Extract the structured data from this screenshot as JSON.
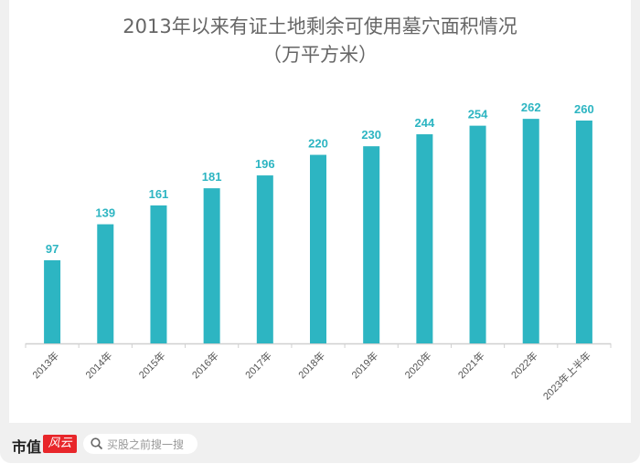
{
  "chart_data": {
    "type": "bar",
    "title": "2013年以来有证土地剩余可使用墓穴面积情况",
    "subtitle": "（万平方米）",
    "categories": [
      "2013年",
      "2014年",
      "2015年",
      "2016年",
      "2017年",
      "2018年",
      "2019年",
      "2020年",
      "2021年",
      "2022年",
      "2023年上半年"
    ],
    "values": [
      97,
      139,
      161,
      181,
      196,
      220,
      230,
      244,
      254,
      262,
      260
    ],
    "ylim": [
      0,
      280
    ],
    "grid": false,
    "bar_color": "#2db5c2",
    "label_color": "#2db5c2"
  },
  "footer": {
    "logo_text": "市值",
    "logo_badge": "风云",
    "search_placeholder": "买股之前搜一搜",
    "search_icon": "search-icon"
  }
}
